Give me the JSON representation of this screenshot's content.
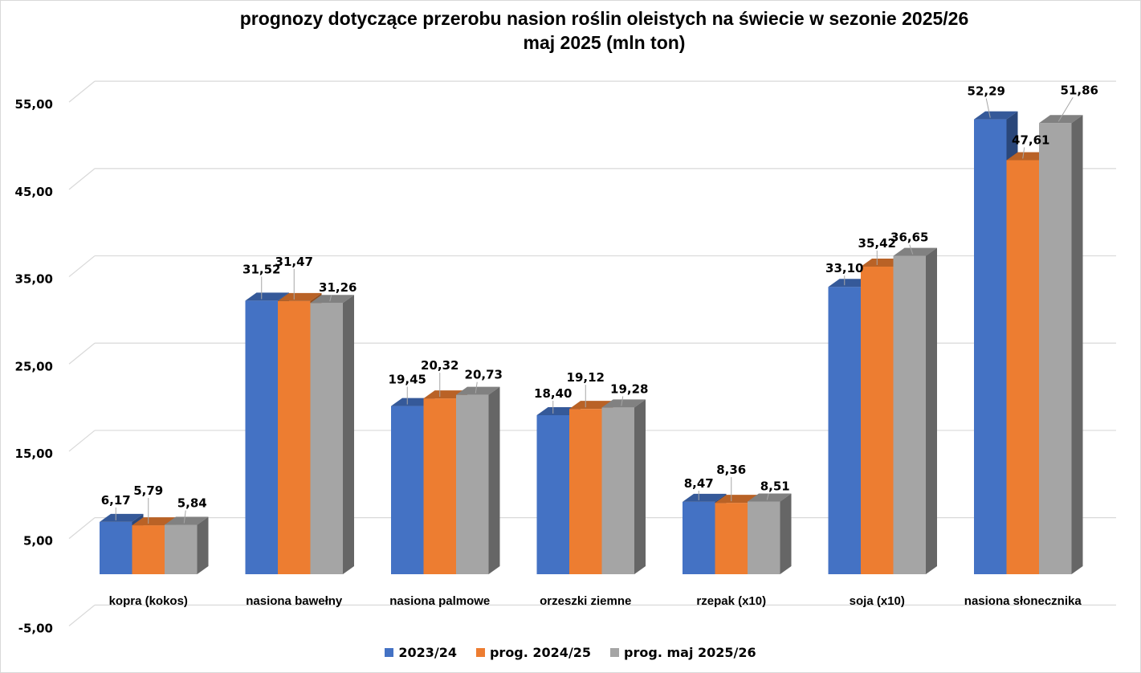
{
  "chart_data": {
    "type": "bar",
    "variant": "3d-clustered-column",
    "title": "prognozy dotyczące przerobu nasion roślin oleistych na świecie w sezonie 2025/26",
    "subtitle": "maj 2025 (mln ton)",
    "xlabel": "",
    "ylabel": "",
    "ylim": [
      -5,
      55
    ],
    "yticks": [
      -5,
      5,
      15,
      25,
      35,
      45,
      55
    ],
    "ytick_labels": [
      "-5,00",
      "5,00",
      "15,00",
      "25,00",
      "35,00",
      "45,00",
      "55,00"
    ],
    "grid": true,
    "legend_position": "bottom",
    "categories": [
      "kopra (kokos)",
      "nasiona bawełny",
      "nasiona palmowe",
      "orzeszki ziemne",
      "rzepak (x10)",
      "soja (x10)",
      "nasiona słonecznika"
    ],
    "series": [
      {
        "name": "2023/24",
        "color": "#4472C4",
        "values": [
          6.17,
          31.52,
          19.45,
          18.4,
          8.47,
          33.1,
          52.29
        ],
        "labels": [
          "6,17",
          "31,52",
          "19,45",
          "18,40",
          "8,47",
          "33,10",
          "52,29"
        ]
      },
      {
        "name": "prog. 2024/25",
        "color": "#ED7D31",
        "values": [
          5.79,
          31.47,
          20.32,
          19.12,
          8.36,
          35.42,
          47.61
        ],
        "labels": [
          "5,79",
          "31,47",
          "20,32",
          "19,12",
          "8,36",
          "35,42",
          "47,61"
        ]
      },
      {
        "name": "prog. maj 2025/26",
        "color": "#A5A5A5",
        "values": [
          5.84,
          31.26,
          20.73,
          19.28,
          8.51,
          36.65,
          51.86
        ],
        "labels": [
          "5,84",
          "31,26",
          "20,73",
          "19,28",
          "8,51",
          "36,65",
          "51,86"
        ]
      }
    ]
  }
}
